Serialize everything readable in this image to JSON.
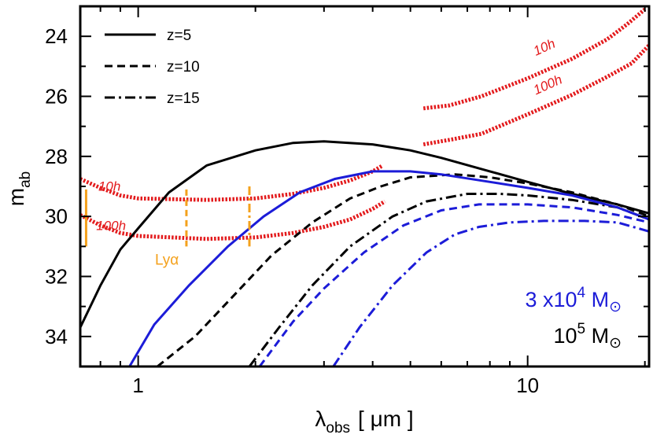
{
  "chart_data": {
    "type": "line",
    "title": "",
    "xlabel": {
      "base": "λ",
      "sub": "obs",
      "unit": "[ μm ]"
    },
    "ylabel": {
      "base": "m",
      "sub": "ab"
    },
    "x_scale": "log",
    "xlim": [
      0.71,
      20.5
    ],
    "ylim": [
      35,
      23
    ],
    "x_ticks": [
      {
        "value": 1,
        "label": "1"
      },
      {
        "value": 10,
        "label": "10"
      }
    ],
    "y_ticks": [
      {
        "value": 24,
        "label": "24"
      },
      {
        "value": 26,
        "label": "26"
      },
      {
        "value": 28,
        "label": "28"
      },
      {
        "value": 30,
        "label": "30"
      },
      {
        "value": 32,
        "label": "32"
      },
      {
        "value": 34,
        "label": "34"
      }
    ],
    "colors": {
      "high_mass": "#000000",
      "low_mass": "#1c1cd8",
      "sensitivity": "#e31a1c",
      "lya": "#f4a11c"
    },
    "legend_placement": "top-left",
    "legend": [
      {
        "label": "z=5",
        "dash": "solid"
      },
      {
        "label": "z=10",
        "dash": "dashed"
      },
      {
        "label": "z=15",
        "dash": "dashdot"
      }
    ],
    "mass_legend": [
      {
        "pre": "3 x10",
        "exp": "4",
        "post": " M",
        "sub": "⊙",
        "color_key": "low_mass"
      },
      {
        "pre": "10",
        "exp": "5",
        "post": " M",
        "sub": "⊙",
        "color_key": "high_mass"
      }
    ],
    "series": [
      {
        "color_key": "high_mass",
        "dash": "solid",
        "points": [
          [
            0.71,
            33.7
          ],
          [
            0.8,
            32.3
          ],
          [
            0.9,
            31.1
          ],
          [
            1.0,
            30.4
          ],
          [
            1.2,
            29.2
          ],
          [
            1.5,
            28.3
          ],
          [
            2.0,
            27.8
          ],
          [
            2.5,
            27.55
          ],
          [
            3.0,
            27.5
          ],
          [
            4.0,
            27.6
          ],
          [
            5.0,
            27.8
          ],
          [
            6.0,
            28.05
          ],
          [
            8.0,
            28.5
          ],
          [
            10.0,
            28.85
          ],
          [
            13.0,
            29.25
          ],
          [
            17.0,
            29.6
          ],
          [
            20.5,
            29.9
          ]
        ]
      },
      {
        "color_key": "high_mass",
        "dash": "dashed",
        "points": [
          [
            1.12,
            35.0
          ],
          [
            1.4,
            34.0
          ],
          [
            1.8,
            32.5
          ],
          [
            2.2,
            31.3
          ],
          [
            2.8,
            30.2
          ],
          [
            3.5,
            29.4
          ],
          [
            4.2,
            29.0
          ],
          [
            5.0,
            28.7
          ],
          [
            6.5,
            28.6
          ],
          [
            8.0,
            28.7
          ],
          [
            10.0,
            28.9
          ],
          [
            13.0,
            29.2
          ],
          [
            17.0,
            29.6
          ],
          [
            20.5,
            30.0
          ]
        ]
      },
      {
        "color_key": "high_mass",
        "dash": "dashdot",
        "points": [
          [
            1.93,
            35.0
          ],
          [
            2.3,
            33.7
          ],
          [
            2.8,
            32.3
          ],
          [
            3.5,
            31.0
          ],
          [
            4.5,
            30.0
          ],
          [
            5.5,
            29.5
          ],
          [
            7.0,
            29.25
          ],
          [
            8.5,
            29.25
          ],
          [
            10.0,
            29.3
          ],
          [
            13.0,
            29.45
          ],
          [
            17.0,
            29.7
          ],
          [
            20.5,
            30.1
          ]
        ]
      },
      {
        "color_key": "low_mass",
        "dash": "solid",
        "points": [
          [
            0.95,
            35.0
          ],
          [
            1.1,
            33.6
          ],
          [
            1.35,
            32.3
          ],
          [
            1.7,
            31.0
          ],
          [
            2.1,
            30.0
          ],
          [
            2.6,
            29.2
          ],
          [
            3.2,
            28.75
          ],
          [
            4.0,
            28.5
          ],
          [
            5.0,
            28.5
          ],
          [
            6.0,
            28.6
          ],
          [
            8.0,
            28.85
          ],
          [
            10.0,
            29.05
          ],
          [
            13.0,
            29.3
          ],
          [
            17.0,
            29.7
          ],
          [
            20.5,
            30.1
          ]
        ]
      },
      {
        "color_key": "low_mass",
        "dash": "dashed",
        "points": [
          [
            2.05,
            35.0
          ],
          [
            2.5,
            33.5
          ],
          [
            3.0,
            32.4
          ],
          [
            3.8,
            31.2
          ],
          [
            4.8,
            30.3
          ],
          [
            6.0,
            29.8
          ],
          [
            7.5,
            29.6
          ],
          [
            10.0,
            29.6
          ],
          [
            13.0,
            29.7
          ],
          [
            17.0,
            29.95
          ],
          [
            20.5,
            30.2
          ]
        ]
      },
      {
        "color_key": "low_mass",
        "dash": "dashdot",
        "points": [
          [
            3.17,
            35.0
          ],
          [
            3.7,
            33.7
          ],
          [
            4.5,
            32.3
          ],
          [
            5.5,
            31.2
          ],
          [
            6.5,
            30.6
          ],
          [
            7.5,
            30.35
          ],
          [
            9.0,
            30.2
          ],
          [
            11.0,
            30.15
          ],
          [
            14.0,
            30.15
          ],
          [
            17.0,
            30.2
          ],
          [
            20.5,
            30.5
          ]
        ]
      }
    ],
    "sensitivity_curves": [
      {
        "label": "10h",
        "label_x": 0.79,
        "label_y": 29.15,
        "points": [
          [
            0.71,
            28.75
          ],
          [
            0.8,
            29.05
          ],
          [
            0.9,
            29.3
          ],
          [
            1.0,
            29.4
          ],
          [
            1.5,
            29.45
          ],
          [
            2.0,
            29.4
          ],
          [
            2.5,
            29.25
          ],
          [
            3.0,
            29.05
          ],
          [
            3.5,
            28.8
          ],
          [
            4.0,
            28.5
          ],
          [
            4.25,
            28.3
          ]
        ]
      },
      {
        "label": "100h",
        "label_x": 0.78,
        "label_y": 30.45,
        "points": [
          [
            0.71,
            29.95
          ],
          [
            0.8,
            30.3
          ],
          [
            0.9,
            30.55
          ],
          [
            1.0,
            30.65
          ],
          [
            1.5,
            30.75
          ],
          [
            2.0,
            30.7
          ],
          [
            2.5,
            30.55
          ],
          [
            3.0,
            30.35
          ],
          [
            3.5,
            30.1
          ],
          [
            4.0,
            29.75
          ],
          [
            4.3,
            29.5
          ]
        ]
      },
      {
        "label": "10h",
        "label_x": 10.5,
        "label_y": 24.65,
        "points": [
          [
            5.4,
            26.4
          ],
          [
            6.3,
            26.3
          ],
          [
            7.6,
            26.0
          ],
          [
            10.0,
            25.4
          ],
          [
            13.0,
            24.75
          ],
          [
            16.0,
            24.1
          ],
          [
            18.0,
            23.6
          ],
          [
            20.0,
            23.1
          ]
        ]
      },
      {
        "label": "100h",
        "label_x": 10.5,
        "label_y": 25.95,
        "points": [
          [
            5.4,
            27.6
          ],
          [
            6.3,
            27.45
          ],
          [
            7.6,
            27.25
          ],
          [
            10.0,
            26.6
          ],
          [
            13.0,
            25.95
          ],
          [
            16.0,
            25.35
          ],
          [
            18.5,
            24.9
          ],
          [
            20.5,
            24.3
          ]
        ]
      }
    ],
    "lya_label": "Lyα",
    "lya_markers": [
      {
        "x": 0.735,
        "y1": 29.1,
        "y2": 31.0,
        "style": "solid"
      },
      {
        "x": 1.33,
        "y1": 29.1,
        "y2": 31.0,
        "style": "dashed"
      },
      {
        "x": 1.93,
        "y1": 29.0,
        "y2": 31.0,
        "style": "dashdot"
      }
    ]
  }
}
